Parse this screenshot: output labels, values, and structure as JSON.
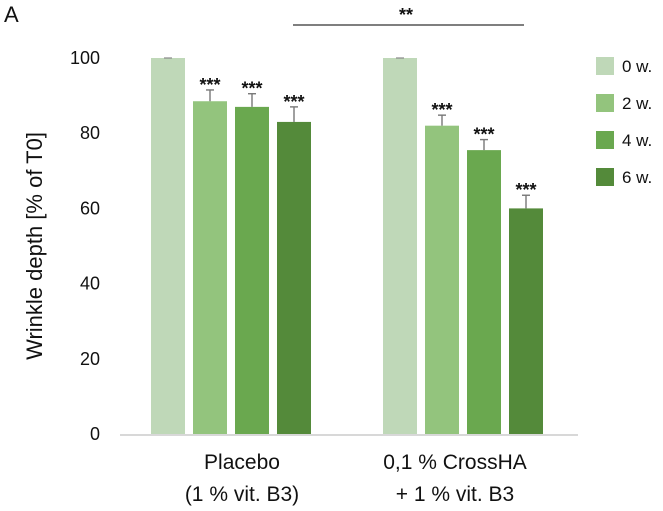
{
  "panel_label": "A",
  "chart_data": {
    "type": "bar",
    "ylabel": "Wrinkle depth [% of T0]",
    "xlabel": "",
    "ylim": [
      0,
      100
    ],
    "yticks": [
      0,
      20,
      40,
      60,
      80,
      100
    ],
    "categories": [
      [
        "Placebo",
        "(1 % vit. B3)"
      ],
      [
        "0,1 % CrossHA",
        "+ 1 % vit. B3"
      ]
    ],
    "series": [
      {
        "name": "0 w.",
        "color": "#bfd8b8",
        "values": [
          100,
          100
        ],
        "errors": [
          0,
          0
        ],
        "significance": [
          "",
          ""
        ]
      },
      {
        "name": "2 w.",
        "color": "#93c47d",
        "values": [
          88.5,
          82
        ],
        "errors": [
          3,
          2.8
        ],
        "significance": [
          "***",
          "***"
        ]
      },
      {
        "name": "4 w.",
        "color": "#6aa84f",
        "values": [
          87,
          75.5
        ],
        "errors": [
          3.5,
          2.8
        ],
        "significance": [
          "***",
          "***"
        ]
      },
      {
        "name": "6 w.",
        "color": "#548a3a",
        "values": [
          83,
          60
        ],
        "errors": [
          4,
          3.5
        ],
        "significance": [
          "***",
          "***"
        ]
      }
    ],
    "comparison": {
      "label": "**",
      "between": [
        0,
        1
      ]
    },
    "grid": false,
    "legend_position": "right"
  }
}
